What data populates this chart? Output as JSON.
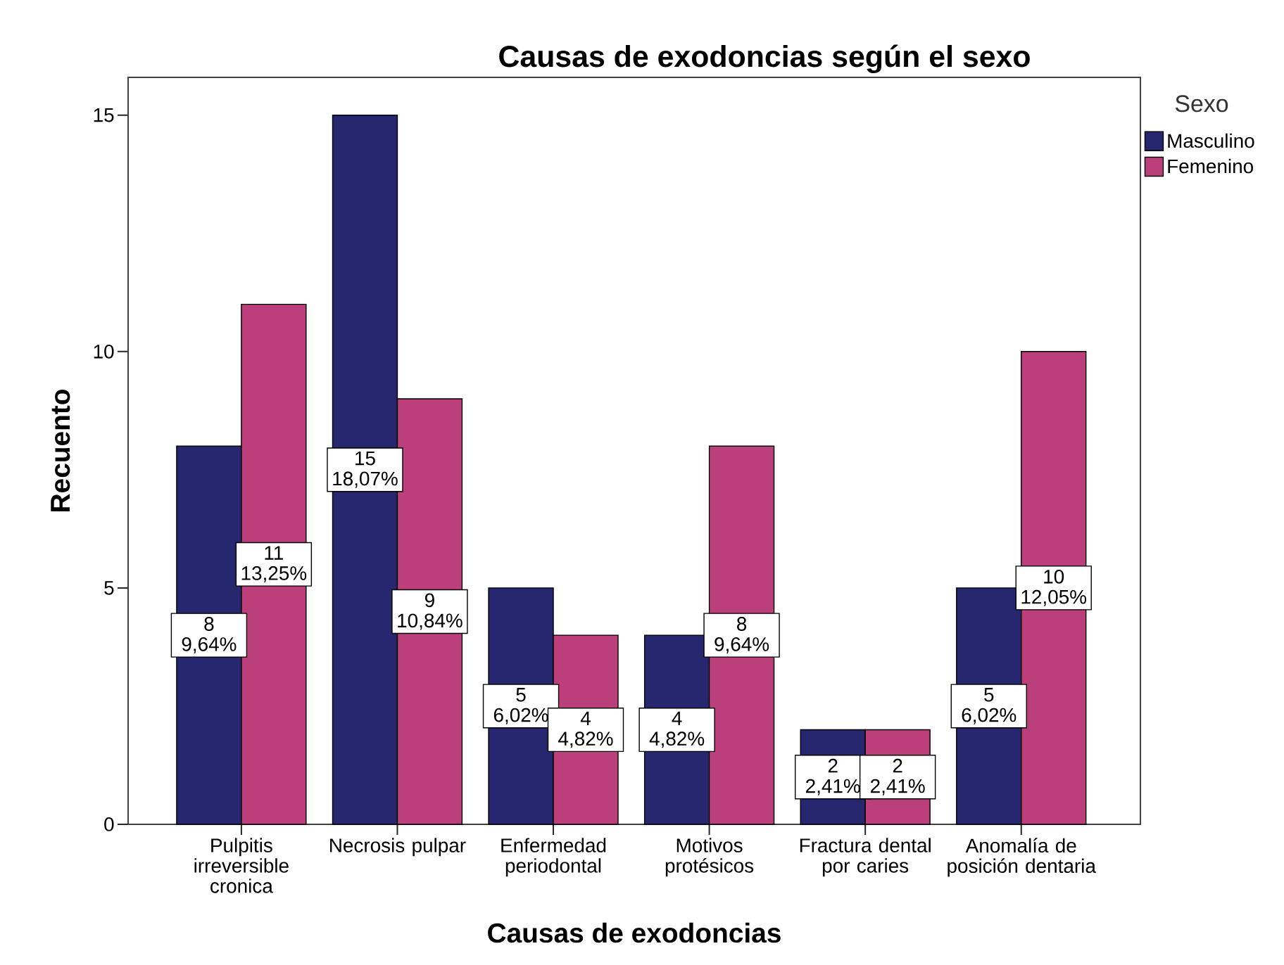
{
  "chart_data": {
    "type": "bar",
    "title": "Causas de exodoncias según el sexo",
    "xlabel": "Causas de exodoncias",
    "ylabel": "Recuento",
    "legend_title": "Sexo",
    "categories": [
      "Pulpitis irreversible cronica",
      "Necrosis pulpar",
      "Enfermedad periodontal",
      "Motivos protésicos",
      "Fractura dental por caries",
      "Anomalía de posición dentaria"
    ],
    "series": [
      {
        "name": "Masculino",
        "color": "#26276f",
        "values": [
          8,
          15,
          5,
          4,
          2,
          5
        ],
        "value_labels": [
          "8 9,64%",
          "15 18,07%",
          "5 6,02%",
          "4 4,82%",
          "2 2,41%",
          "5 6,02%"
        ]
      },
      {
        "name": "Femenino",
        "color": "#ba3f7b",
        "values": [
          11,
          9,
          4,
          8,
          2,
          10
        ],
        "value_labels": [
          "11 13,25%",
          "9 10,84%",
          "4 4,82%",
          "8 9,64%",
          "2 2,41%",
          "10 12,05%"
        ]
      }
    ],
    "ylim": [
      0,
      15.8
    ],
    "yticks": [
      0,
      5,
      10,
      15
    ],
    "legend": "top right"
  }
}
